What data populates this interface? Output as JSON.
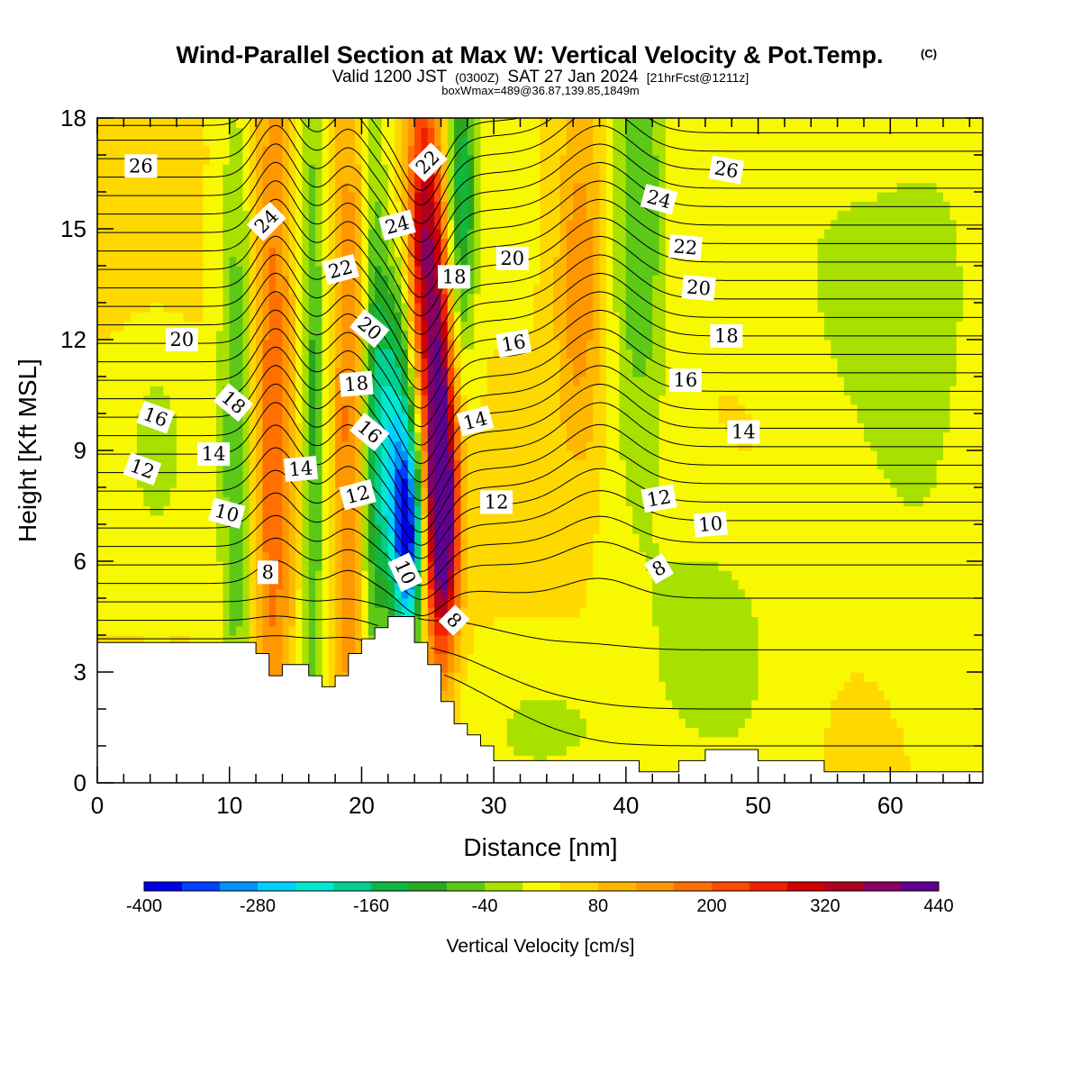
{
  "title": {
    "main": "Wind-Parallel Section at Max W: Vertical Velocity & Pot.Temp.",
    "copyright": "(C)",
    "valid_prefix": "Valid 1200 JST",
    "valid_utc": "(0300Z)",
    "valid_date": "SAT 27 Jan 2024",
    "forecast": "[21hrFcst@1211z]",
    "box_info": "boxWmax=489@36.87,139.85,1849m"
  },
  "chart_data": {
    "type": "heatmap",
    "xlabel": "Distance [nm]",
    "ylabel": "Height [Kft MSL]",
    "xlim": [
      0,
      67
    ],
    "ylim": [
      0,
      18
    ],
    "x_ticks": [
      0,
      10,
      20,
      30,
      40,
      50,
      60
    ],
    "y_ticks": [
      0,
      3,
      6,
      9,
      12,
      15,
      18
    ],
    "x_tick_labels": [
      "0",
      "10",
      "20",
      "30",
      "40",
      "50",
      "60"
    ],
    "y_tick_labels": [
      "0",
      "3",
      "6",
      "9",
      "12",
      "15",
      "18"
    ],
    "colorbar": {
      "title": "Vertical Velocity [cm/s]",
      "labels": [
        "-400",
        "-280",
        "-160",
        "-40",
        "80",
        "200",
        "320",
        "440"
      ],
      "label_values": [
        -400,
        -280,
        -160,
        -40,
        80,
        200,
        320,
        440
      ],
      "min": -400,
      "max": 440,
      "step": 40,
      "colors": [
        "#0000e6",
        "#0040ff",
        "#0090ff",
        "#00d0ff",
        "#00e8d0",
        "#00d090",
        "#10b840",
        "#28a820",
        "#5cc818",
        "#a8e000",
        "#f8f800",
        "#ffd800",
        "#ffb800",
        "#ff9800",
        "#ff7000",
        "#ff4800",
        "#f02000",
        "#d00000",
        "#b00020",
        "#880060",
        "#600090"
      ]
    },
    "velocity_features": [
      {
        "x": 4.5,
        "z": 9.2,
        "sx": 1.4,
        "sz": 1.6,
        "w": -60
      },
      {
        "x": 10.5,
        "z": 9.0,
        "sx": 0.9,
        "sz": 6.0,
        "w": -120
      },
      {
        "x": 13.3,
        "z": 10.0,
        "sx": 1.0,
        "sz": 8.5,
        "w": 150
      },
      {
        "x": 16.3,
        "z": 9.5,
        "sx": 0.6,
        "sz": 7.0,
        "w": -130
      },
      {
        "x": 19.0,
        "z": 9.5,
        "sx": 0.8,
        "sz": 7.0,
        "w": 130
      },
      {
        "x": 21.0,
        "z": 10.0,
        "sx": 0.7,
        "sz": 6.5,
        "w": -120
      },
      {
        "x": 23.5,
        "z": 6.5,
        "sx": 0.8,
        "sz": 2.0,
        "w": -350
      },
      {
        "x": 22.5,
        "z": 9.5,
        "sx": 1.1,
        "sz": 3.0,
        "w": -230
      },
      {
        "x": 24.6,
        "z": 15.0,
        "sx": 0.8,
        "sz": 3.0,
        "w": 260
      },
      {
        "x": 25.8,
        "z": 10.0,
        "sx": 0.8,
        "sz": 4.0,
        "w": 340
      },
      {
        "x": 26.3,
        "z": 7.0,
        "sx": 0.8,
        "sz": 2.2,
        "w": 300
      },
      {
        "x": 27.5,
        "z": 16.0,
        "sx": 0.8,
        "sz": 3.0,
        "w": -190
      },
      {
        "x": 36.5,
        "z": 13.5,
        "sx": 1.3,
        "sz": 3.5,
        "w": 110
      },
      {
        "x": 41.0,
        "z": 15.5,
        "sx": 1.5,
        "sz": 4.5,
        "w": -130
      },
      {
        "x": 46.5,
        "z": 4.0,
        "sx": 4.0,
        "sz": 2.5,
        "w": -60
      },
      {
        "x": 35.0,
        "z": 1.5,
        "sx": 5.0,
        "sz": 1.2,
        "w": -45
      },
      {
        "x": 57.0,
        "z": 14.0,
        "sx": 4.0,
        "sz": 3.5,
        "w": -50
      },
      {
        "x": 63.0,
        "z": 11.0,
        "sx": 3.0,
        "sz": 5.0,
        "w": -45
      }
    ],
    "terrain": {
      "x": [
        0,
        12,
        12,
        13,
        13,
        14,
        14,
        16,
        16,
        17,
        17,
        18,
        18,
        19,
        19,
        20,
        20,
        21,
        21,
        22,
        22,
        24,
        24,
        25,
        25,
        26,
        26,
        27,
        27,
        28,
        28,
        29,
        29,
        30,
        30,
        41,
        41,
        42,
        42,
        44,
        44,
        46,
        46,
        50,
        50,
        55,
        55,
        67
      ],
      "z": [
        3.8,
        3.8,
        3.5,
        3.5,
        2.9,
        2.9,
        3.2,
        3.2,
        2.9,
        2.9,
        2.6,
        2.6,
        2.9,
        2.9,
        3.5,
        3.5,
        3.9,
        3.9,
        4.2,
        4.2,
        4.5,
        4.5,
        3.8,
        3.8,
        3.2,
        3.2,
        2.2,
        2.2,
        1.6,
        1.6,
        1.3,
        1.3,
        1.0,
        1.0,
        0.6,
        0.6,
        0.3,
        0.3,
        0.3,
        0.3,
        0.6,
        0.6,
        0.9,
        0.9,
        0.6,
        0.6,
        0.3,
        0.3
      ]
    },
    "isentropes": {
      "base_heights": [
        3.9,
        4.4,
        4.9,
        5.4,
        5.9,
        6.4,
        6.9,
        7.4,
        7.9,
        8.4,
        8.9,
        9.4,
        9.9,
        10.4,
        10.9,
        11.4,
        11.9,
        12.4,
        12.9,
        13.4,
        13.9,
        14.4,
        14.9,
        15.4,
        15.9,
        16.4,
        16.9,
        17.4,
        17.8
      ],
      "east_heights": [
        1.0,
        2.0,
        3.6,
        5.0,
        5.9,
        6.5,
        7.1,
        7.6,
        8.1,
        8.6,
        9.1,
        9.6,
        10.1,
        10.6,
        11.1,
        11.6,
        12.1,
        12.6,
        13.1,
        13.6,
        14.1,
        14.6,
        15.1,
        15.6,
        16.1,
        16.6,
        17.1,
        17.6,
        18.0
      ]
    },
    "contour_labels": [
      {
        "text": "26",
        "x": 3.3,
        "z": 16.7,
        "angle": 0
      },
      {
        "text": "26",
        "x": 47.6,
        "z": 16.6,
        "angle": 10
      },
      {
        "text": "24",
        "x": 12.8,
        "z": 15.2,
        "angle": -45
      },
      {
        "text": "24",
        "x": 22.7,
        "z": 15.1,
        "angle": -15
      },
      {
        "text": "24",
        "x": 42.5,
        "z": 15.8,
        "angle": 15
      },
      {
        "text": "22",
        "x": 25.0,
        "z": 16.8,
        "angle": -45
      },
      {
        "text": "22",
        "x": 18.4,
        "z": 13.9,
        "angle": -15
      },
      {
        "text": "22",
        "x": 44.5,
        "z": 14.5,
        "angle": 5
      },
      {
        "text": "20",
        "x": 6.4,
        "z": 12.0,
        "angle": 0
      },
      {
        "text": "20",
        "x": 20.6,
        "z": 12.3,
        "angle": 40
      },
      {
        "text": "20",
        "x": 31.4,
        "z": 14.2,
        "angle": 0
      },
      {
        "text": "20",
        "x": 45.5,
        "z": 13.4,
        "angle": 5
      },
      {
        "text": "18",
        "x": 10.3,
        "z": 10.3,
        "angle": 40
      },
      {
        "text": "18",
        "x": 19.6,
        "z": 10.8,
        "angle": -5
      },
      {
        "text": "18",
        "x": 27.0,
        "z": 13.7,
        "angle": 0
      },
      {
        "text": "18",
        "x": 47.6,
        "z": 12.1,
        "angle": 0
      },
      {
        "text": "16",
        "x": 4.4,
        "z": 9.9,
        "angle": 20
      },
      {
        "text": "16",
        "x": 20.6,
        "z": 9.5,
        "angle": 40
      },
      {
        "text": "16",
        "x": 31.5,
        "z": 11.9,
        "angle": -10
      },
      {
        "text": "16",
        "x": 44.5,
        "z": 10.9,
        "angle": 0
      },
      {
        "text": "14",
        "x": 8.8,
        "z": 8.9,
        "angle": 0
      },
      {
        "text": "14",
        "x": 15.4,
        "z": 8.5,
        "angle": -5
      },
      {
        "text": "14",
        "x": 28.6,
        "z": 9.8,
        "angle": -15
      },
      {
        "text": "14",
        "x": 48.9,
        "z": 9.5,
        "angle": 0
      },
      {
        "text": "12",
        "x": 3.4,
        "z": 8.5,
        "angle": 20
      },
      {
        "text": "12",
        "x": 19.7,
        "z": 7.8,
        "angle": -15
      },
      {
        "text": "12",
        "x": 30.2,
        "z": 7.6,
        "angle": 0
      },
      {
        "text": "12",
        "x": 42.5,
        "z": 7.7,
        "angle": -10
      },
      {
        "text": "10",
        "x": 9.8,
        "z": 7.3,
        "angle": 15
      },
      {
        "text": "10",
        "x": 23.3,
        "z": 5.7,
        "angle": 65
      },
      {
        "text": "10",
        "x": 46.4,
        "z": 7.0,
        "angle": -5
      },
      {
        "text": "8",
        "x": 12.9,
        "z": 5.7,
        "angle": 0
      },
      {
        "text": "8",
        "x": 27.0,
        "z": 4.4,
        "angle": 45
      },
      {
        "text": "8",
        "x": 42.5,
        "z": 5.8,
        "angle": -30
      }
    ]
  }
}
